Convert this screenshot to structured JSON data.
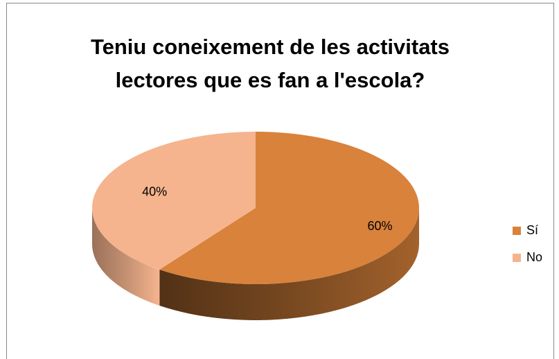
{
  "chart_data": {
    "type": "pie",
    "title": "Teniu coneixement de les activitats lectores que es fan a l'escola?",
    "categories": [
      "Sí",
      "No"
    ],
    "values": [
      60,
      40
    ],
    "value_labels": [
      "60%",
      "40%"
    ],
    "colors": [
      "#d9823b",
      "#f5b48e"
    ],
    "legend": "right"
  }
}
